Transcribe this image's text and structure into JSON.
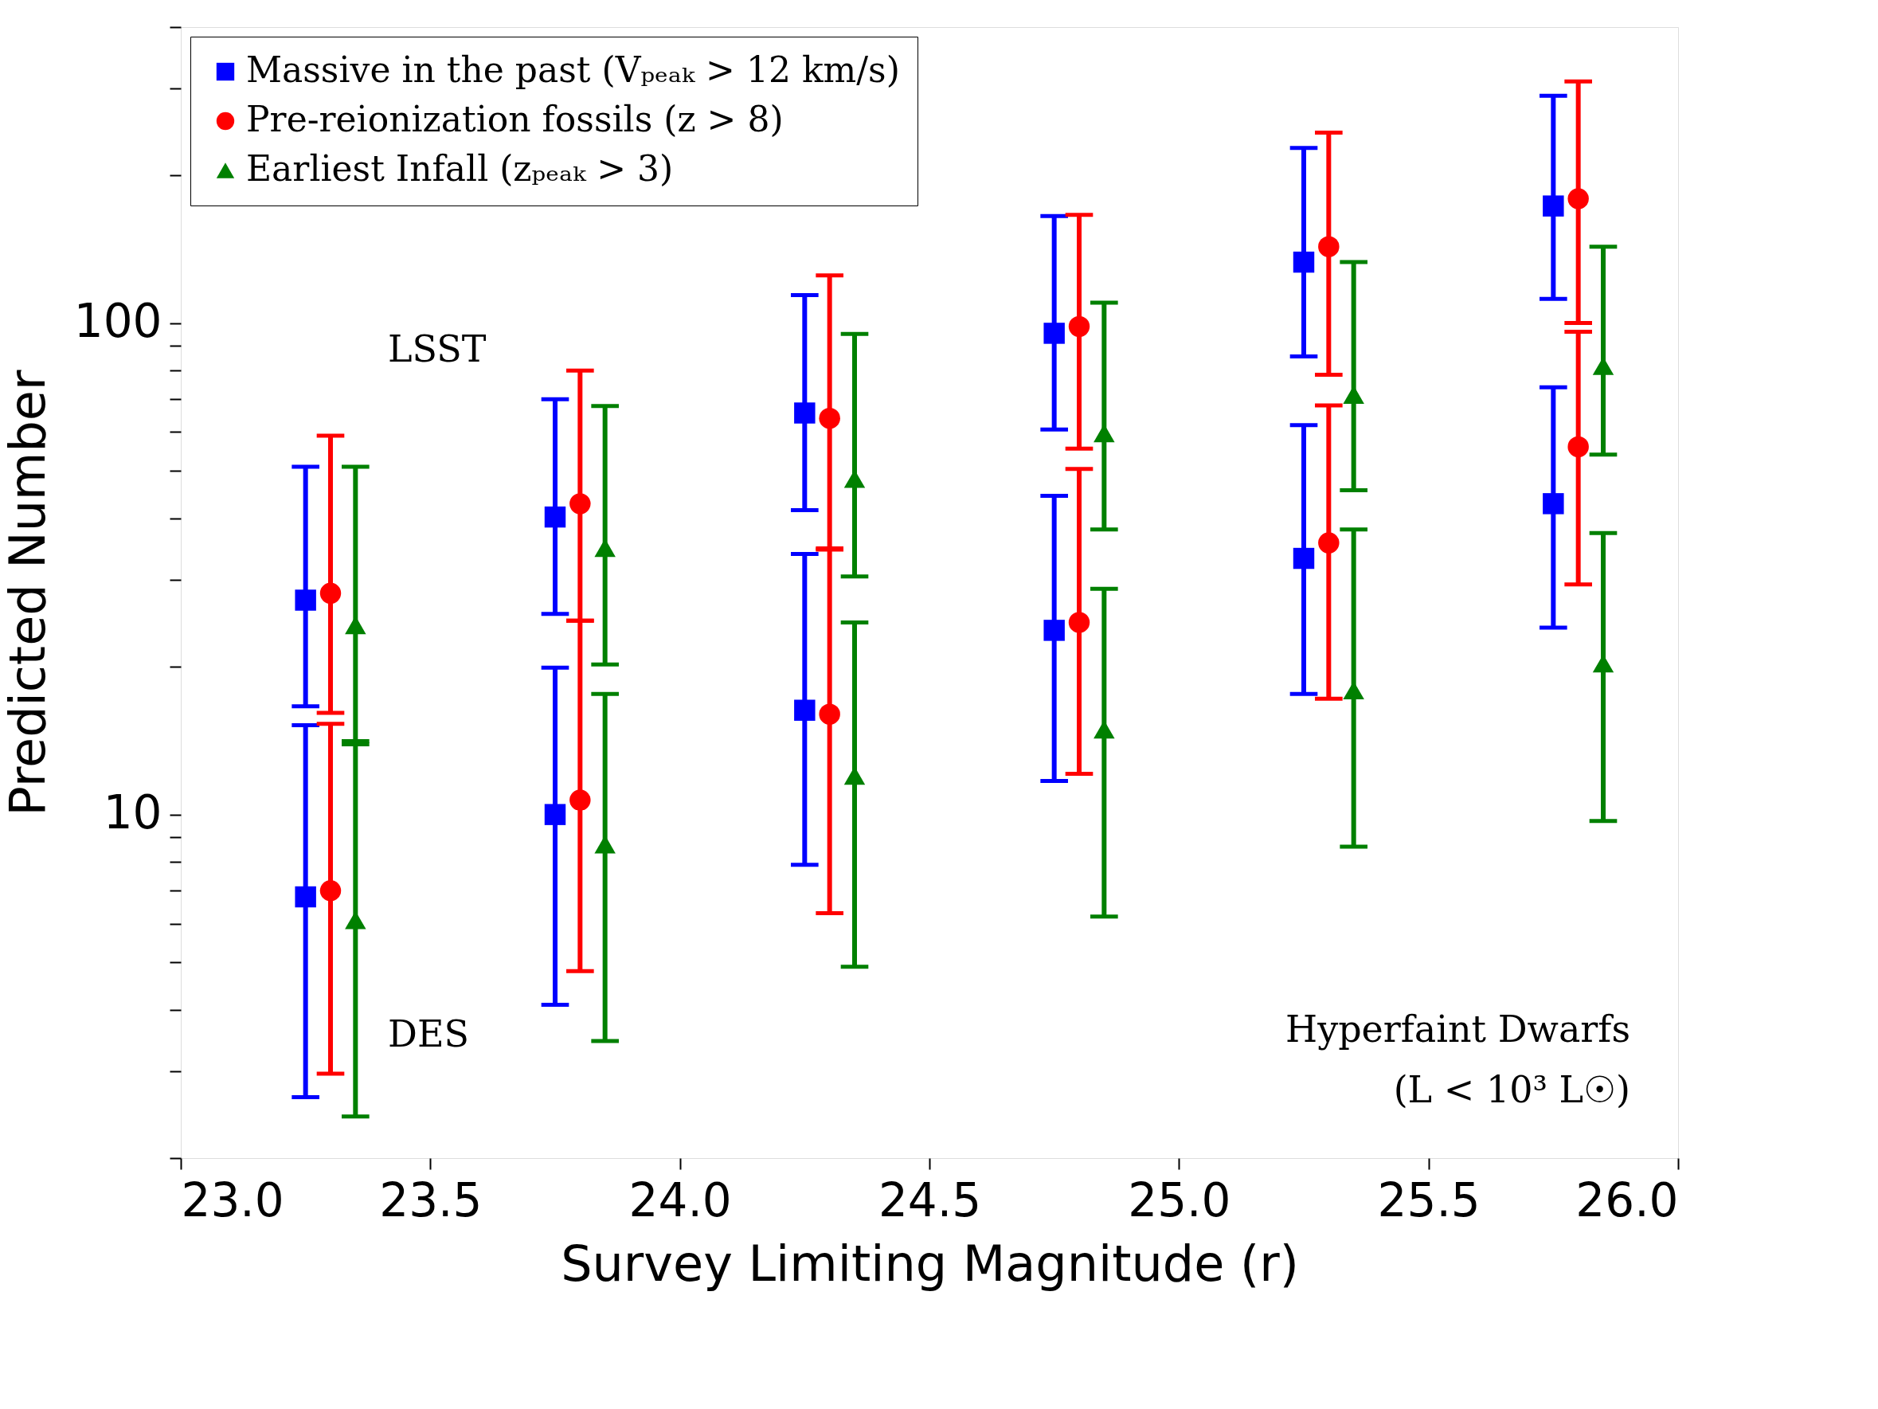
{
  "chart_data": {
    "type": "scatter",
    "xlabel": "Survey Limiting Magnitude (r)",
    "ylabel": "Predicted Number",
    "xlim": [
      23.0,
      26.0
    ],
    "xticks": [
      {
        "value": 23.0,
        "label": "23.0"
      },
      {
        "value": 23.5,
        "label": "23.5"
      },
      {
        "value": 24.0,
        "label": "24.0"
      },
      {
        "value": 24.5,
        "label": "24.5"
      },
      {
        "value": 25.0,
        "label": "25.0"
      },
      {
        "value": 25.5,
        "label": "25.5"
      },
      {
        "value": 26.0,
        "label": "26.0"
      }
    ],
    "ylim": [
      2,
      400
    ],
    "log": "y",
    "yticks": [
      {
        "value": 2,
        "label": null
      },
      {
        "value": 3,
        "label": null
      },
      {
        "value": 4,
        "label": null
      },
      {
        "value": 5,
        "label": null
      },
      {
        "value": 6,
        "label": null
      },
      {
        "value": 7,
        "label": null
      },
      {
        "value": 8,
        "label": null
      },
      {
        "value": 9,
        "label": null
      },
      10,
      {
        "value": 20,
        "label": null
      },
      {
        "value": 30,
        "label": null
      },
      {
        "value": 40,
        "label": null
      },
      {
        "value": 50,
        "label": null
      },
      {
        "value": 60,
        "label": null
      },
      {
        "value": 70,
        "label": null
      },
      {
        "value": 80,
        "label": null
      },
      {
        "value": 90,
        "label": null
      },
      100,
      {
        "value": 200,
        "label": null
      },
      {
        "value": 300,
        "label": null
      },
      {
        "value": 400,
        "label": null
      }
    ],
    "grid": false,
    "legend": "top left",
    "series": [
      {
        "name": "Massive in the past (Vₚₑₐₖ > 12 km/s)",
        "color": "#0000ff",
        "marker": "square",
        "x": [
          23.25,
          23.75,
          24.25,
          24.75,
          25.25,
          25.75,
          23.25,
          23.75,
          24.25,
          24.75,
          25.25,
          25.75
        ],
        "values": [
          6.8,
          10,
          16.3,
          23.7,
          33.2,
          42.9,
          27.3,
          40.3,
          65.6,
          95.3,
          133,
          173
        ],
        "errors": [
          [
            2.66,
            15.2
          ],
          [
            4.1,
            19.9
          ],
          [
            7.9,
            33.9
          ],
          [
            11.7,
            44.5
          ],
          [
            17.6,
            62
          ],
          [
            24,
            74
          ],
          [
            16.6,
            51
          ],
          [
            25.6,
            70
          ],
          [
            41.6,
            114
          ],
          [
            60.7,
            165
          ],
          [
            85.5,
            227
          ],
          [
            112,
            290
          ]
        ]
      },
      {
        "name": "Pre-reionization fossils (z > 8)",
        "color": "#ff0000",
        "marker": "circle",
        "x": [
          23.3,
          23.8,
          24.3,
          24.8,
          25.3,
          25.8,
          23.3,
          23.8,
          24.3,
          24.8,
          25.3,
          25.8
        ],
        "values": [
          7.0,
          10.7,
          16.0,
          24.6,
          35.7,
          56,
          28.2,
          42.9,
          64,
          98.4,
          143,
          179
        ],
        "errors": [
          [
            2.97,
            15.3
          ],
          [
            4.8,
            24.8
          ],
          [
            6.3,
            34.8
          ],
          [
            12.1,
            50.5
          ],
          [
            17.2,
            68
          ],
          [
            29.4,
            96
          ],
          [
            16.1,
            59
          ],
          [
            24.8,
            80
          ],
          [
            34.6,
            125
          ],
          [
            55.5,
            166
          ],
          [
            78.5,
            244
          ],
          [
            100,
            310
          ]
        ]
      },
      {
        "name": "Earliest Infall (zₚₑₐₖ > 3)",
        "color": "#008000",
        "marker": "triangle",
        "x": [
          23.35,
          23.85,
          24.35,
          24.85,
          25.35,
          25.85,
          23.35,
          23.85,
          24.35,
          24.85,
          25.35,
          25.85
        ],
        "values": [
          6.1,
          8.7,
          12.0,
          14.9,
          17.9,
          20.3,
          24.3,
          34.9,
          48.2,
          59.7,
          71.5,
          81.8
        ],
        "errors": [
          [
            2.43,
            13.9
          ],
          [
            3.46,
            17.6
          ],
          [
            4.9,
            24.6
          ],
          [
            6.2,
            28.8
          ],
          [
            8.6,
            38
          ],
          [
            9.7,
            37.4
          ],
          [
            14.1,
            51
          ],
          [
            20.2,
            67.8
          ],
          [
            30.5,
            95
          ],
          [
            38,
            110
          ],
          [
            45.7,
            133
          ],
          [
            54,
            143
          ]
        ]
      }
    ],
    "annotations": [
      "LSST",
      "DES",
      "Hyperfaint Dwarfs",
      "(L < 10³ L☉)"
    ]
  }
}
